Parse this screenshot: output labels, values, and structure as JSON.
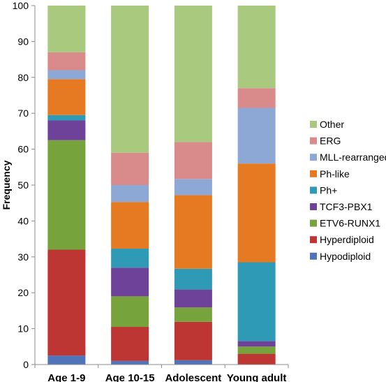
{
  "chart_data": {
    "type": "bar",
    "stacked": true,
    "title": "",
    "xlabel": "",
    "ylabel": "Frequency",
    "ylim": [
      0,
      100
    ],
    "yticks": [
      0,
      10,
      20,
      30,
      40,
      50,
      60,
      70,
      80,
      90,
      100
    ],
    "grid": false,
    "legend_position": "right",
    "categories": [
      "Age 1-9",
      "Age 10-15",
      "Adolescent",
      "Young adult"
    ],
    "series": [
      {
        "name": "Hypodiploid",
        "color": "#4f74b9",
        "values": [
          2.5,
          1.0,
          1.2,
          0.0
        ]
      },
      {
        "name": "Hyperdiploid",
        "color": "#bd3634",
        "values": [
          29.5,
          9.5,
          10.7,
          3.0
        ]
      },
      {
        "name": "ETV6-RUNX1",
        "color": "#76a33c",
        "values": [
          30.5,
          8.5,
          4.0,
          2.0
        ]
      },
      {
        "name": "TCF3-PBX1",
        "color": "#6f4299",
        "values": [
          5.5,
          8.0,
          5.0,
          1.5
        ]
      },
      {
        "name": "Ph+",
        "color": "#2f9ab5",
        "values": [
          1.5,
          5.3,
          5.8,
          22.0
        ]
      },
      {
        "name": "Ph-like",
        "color": "#e67a22",
        "values": [
          10.0,
          13.0,
          20.5,
          27.5
        ]
      },
      {
        "name": "MLL-rearranged",
        "color": "#8ea8d6",
        "values": [
          2.5,
          4.7,
          4.5,
          15.5
        ]
      },
      {
        "name": "ERG",
        "color": "#d98a8a",
        "values": [
          5.0,
          9.0,
          10.3,
          5.5
        ]
      },
      {
        "name": "Other",
        "color": "#a9c97e",
        "values": [
          13.0,
          41.0,
          38.0,
          23.0
        ]
      }
    ]
  }
}
